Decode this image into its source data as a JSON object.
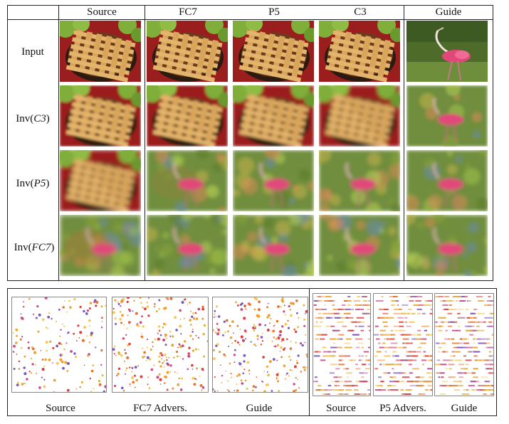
{
  "top_figure": {
    "column_headers": [
      "Source",
      "FC7",
      "P5",
      "C3",
      "Guide"
    ],
    "row_labels": [
      {
        "prefix": "Input",
        "layer": ""
      },
      {
        "prefix": "Inv(",
        "layer": "C3",
        "suffix": ")"
      },
      {
        "prefix": "Inv(",
        "layer": "P5",
        "suffix": ")"
      },
      {
        "prefix": "Inv(",
        "layer": "FC7",
        "suffix": ")"
      }
    ],
    "image_contents": {
      "source_image": "pie-with-apples",
      "guide_image": "flamingo-on-grass"
    }
  },
  "bottom_figure": {
    "left_group_labels": [
      "Source",
      "FC7 Advers.",
      "Guide"
    ],
    "right_group_labels": [
      "Source",
      "P5 Advers.",
      "Guide"
    ]
  },
  "colors": {
    "pie_crust": "#d9a55a",
    "pie_shadow": "#6b3a1c",
    "pie_background": "#9b1e1e",
    "apple_green": "#7fae3a",
    "grass_green": "#6f8e3c",
    "flamingo_pink": "#e2477a"
  }
}
